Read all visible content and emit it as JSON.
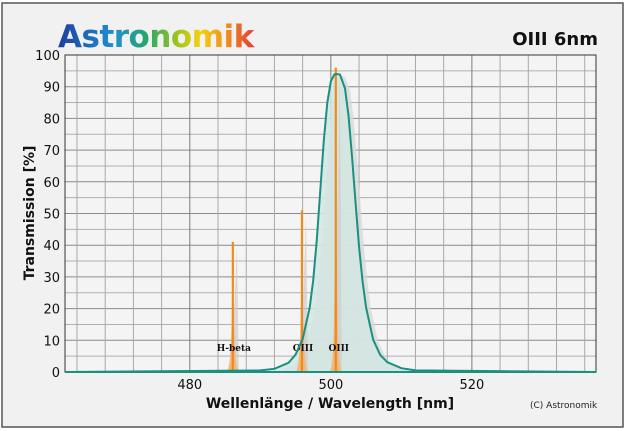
{
  "logo": {
    "text": "Astronomik"
  },
  "chart_data": {
    "type": "line",
    "title": "OIII 6nm",
    "xlabel": "Wellenlänge / Wavelength [nm]",
    "ylabel": "Transmission [%]",
    "xlim": [
      462.3,
      537.6
    ],
    "ylim": [
      0,
      100
    ],
    "xticks": [
      480,
      500,
      520
    ],
    "yticks": [
      0,
      10,
      20,
      30,
      40,
      50,
      60,
      70,
      80,
      90,
      100
    ],
    "grid": true,
    "x_grid_step": 4,
    "y_grid_step": 5,
    "filter_curve": {
      "name": "OIII 6nm transmission",
      "color": "#1a9080",
      "fill": "#d4e6e2",
      "x": [
        490,
        492,
        494,
        495,
        496,
        497,
        497.5,
        498,
        498.5,
        499,
        499.5,
        500,
        500.5,
        500.9,
        501.3,
        502,
        502.5,
        503,
        503.5,
        504,
        504.5,
        505,
        506,
        507,
        508,
        510,
        512
      ],
      "y": [
        0.5,
        1.0,
        2.9,
        5.5,
        10.4,
        20.3,
        29.0,
        41.5,
        57.2,
        73.0,
        85.0,
        91.7,
        93.9,
        94.0,
        93.8,
        89.5,
        81.0,
        68.0,
        53.5,
        39.5,
        28.5,
        20.3,
        10.2,
        5.4,
        3.1,
        1.2,
        0.5
      ]
    },
    "emission_lines": [
      {
        "label": "H-beta",
        "wavelength": 486.1,
        "value": 41
      },
      {
        "label": "OIII",
        "wavelength": 495.9,
        "value": 51
      },
      {
        "label": "OIII",
        "wavelength": 500.7,
        "value": 96
      }
    ],
    "line_color": "#f08a1c",
    "copyright": "(C) Astronomik"
  }
}
